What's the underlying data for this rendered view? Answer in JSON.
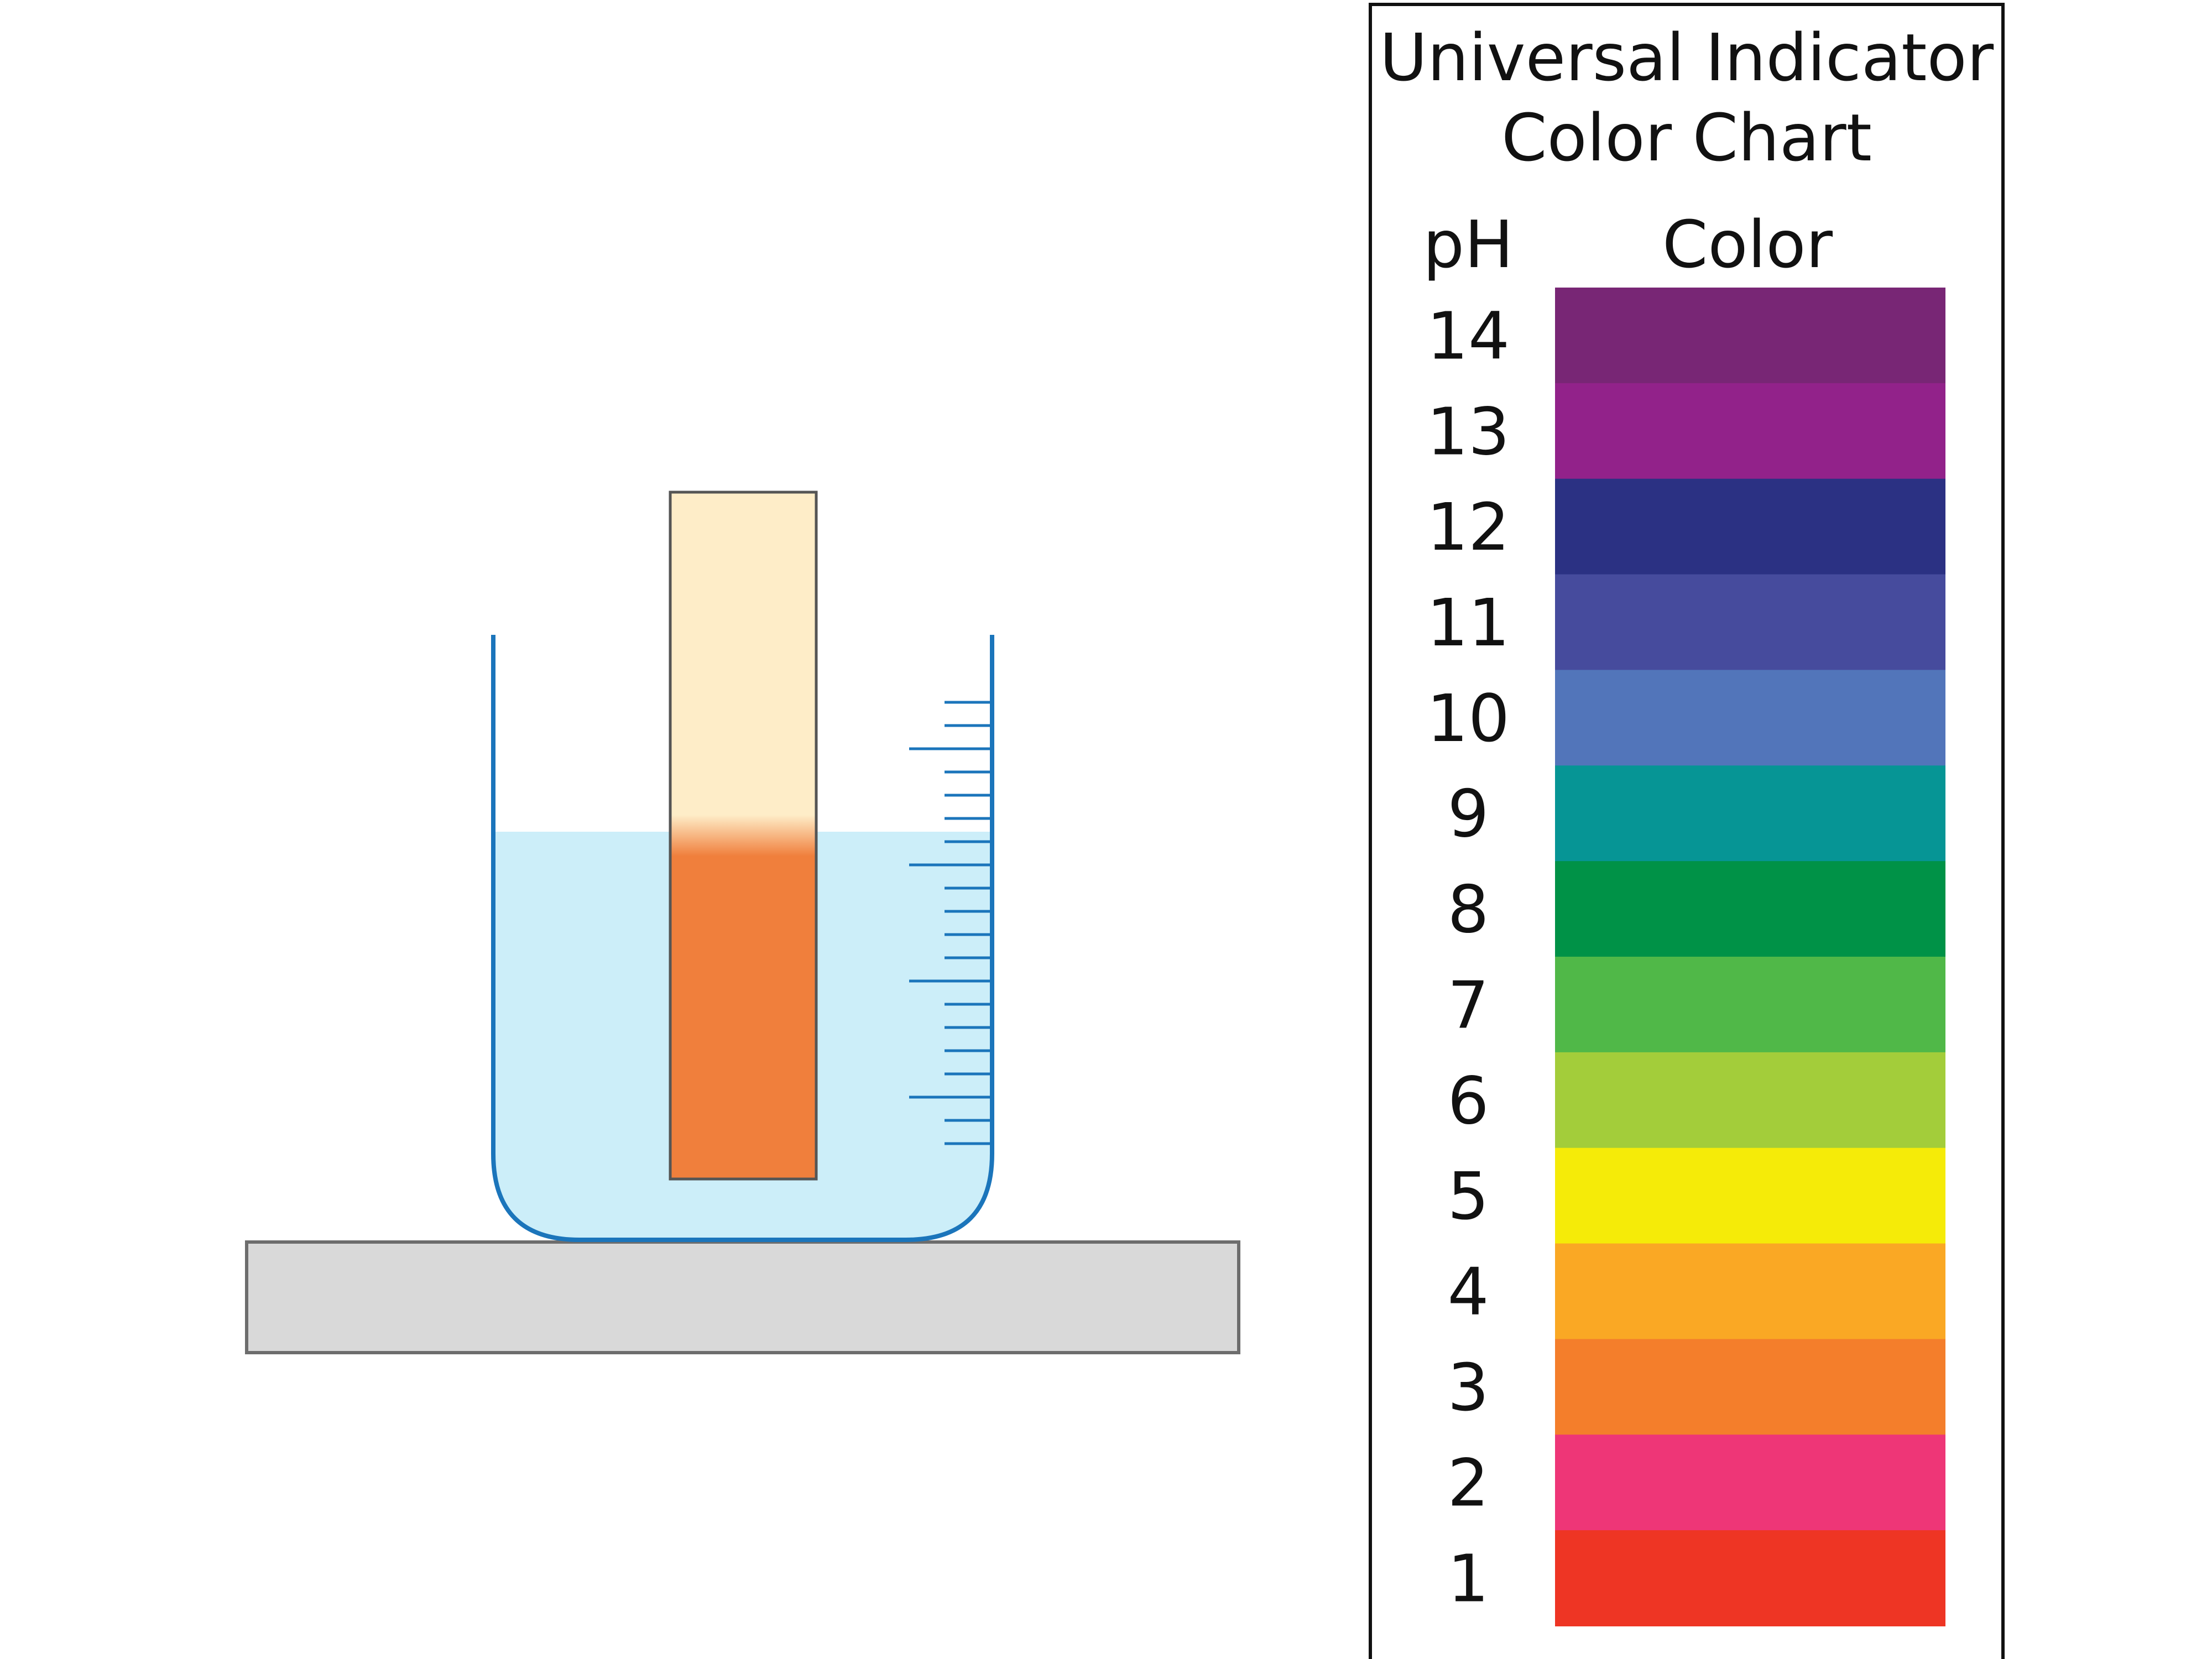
{
  "chart": {
    "title_line1": "Universal Indicator",
    "title_line2": "Color Chart",
    "ph_header": "pH",
    "color_header": "Color",
    "rows": [
      {
        "ph": "14",
        "color": "#782675"
      },
      {
        "ph": "13",
        "color": "#92228A"
      },
      {
        "ph": "12",
        "color": "#2B3183"
      },
      {
        "ph": "11",
        "color": "#464B9D"
      },
      {
        "ph": "10",
        "color": "#5275BA"
      },
      {
        "ph": "9",
        "color": "#069595"
      },
      {
        "ph": "8",
        "color": "#009247"
      },
      {
        "ph": "7",
        "color": "#50B848"
      },
      {
        "ph": "6",
        "color": "#A3CD3A"
      },
      {
        "ph": "5",
        "color": "#F5EB08"
      },
      {
        "ph": "4",
        "color": "#FAA824"
      },
      {
        "ph": "3",
        "color": "#F47E2B"
      },
      {
        "ph": "2",
        "color": "#EE3677"
      },
      {
        "ph": "1",
        "color": "#EE3524"
      }
    ]
  },
  "beaker": {
    "glass_color": "#1B75BB",
    "liquid_color": "#CCEEF9",
    "paper_dry_color": "#FEEDC8",
    "paper_wet_color": "#F07F3C"
  },
  "base": {
    "fill_color": "#D9D9D9",
    "stroke_color": "#6D6D6D"
  }
}
